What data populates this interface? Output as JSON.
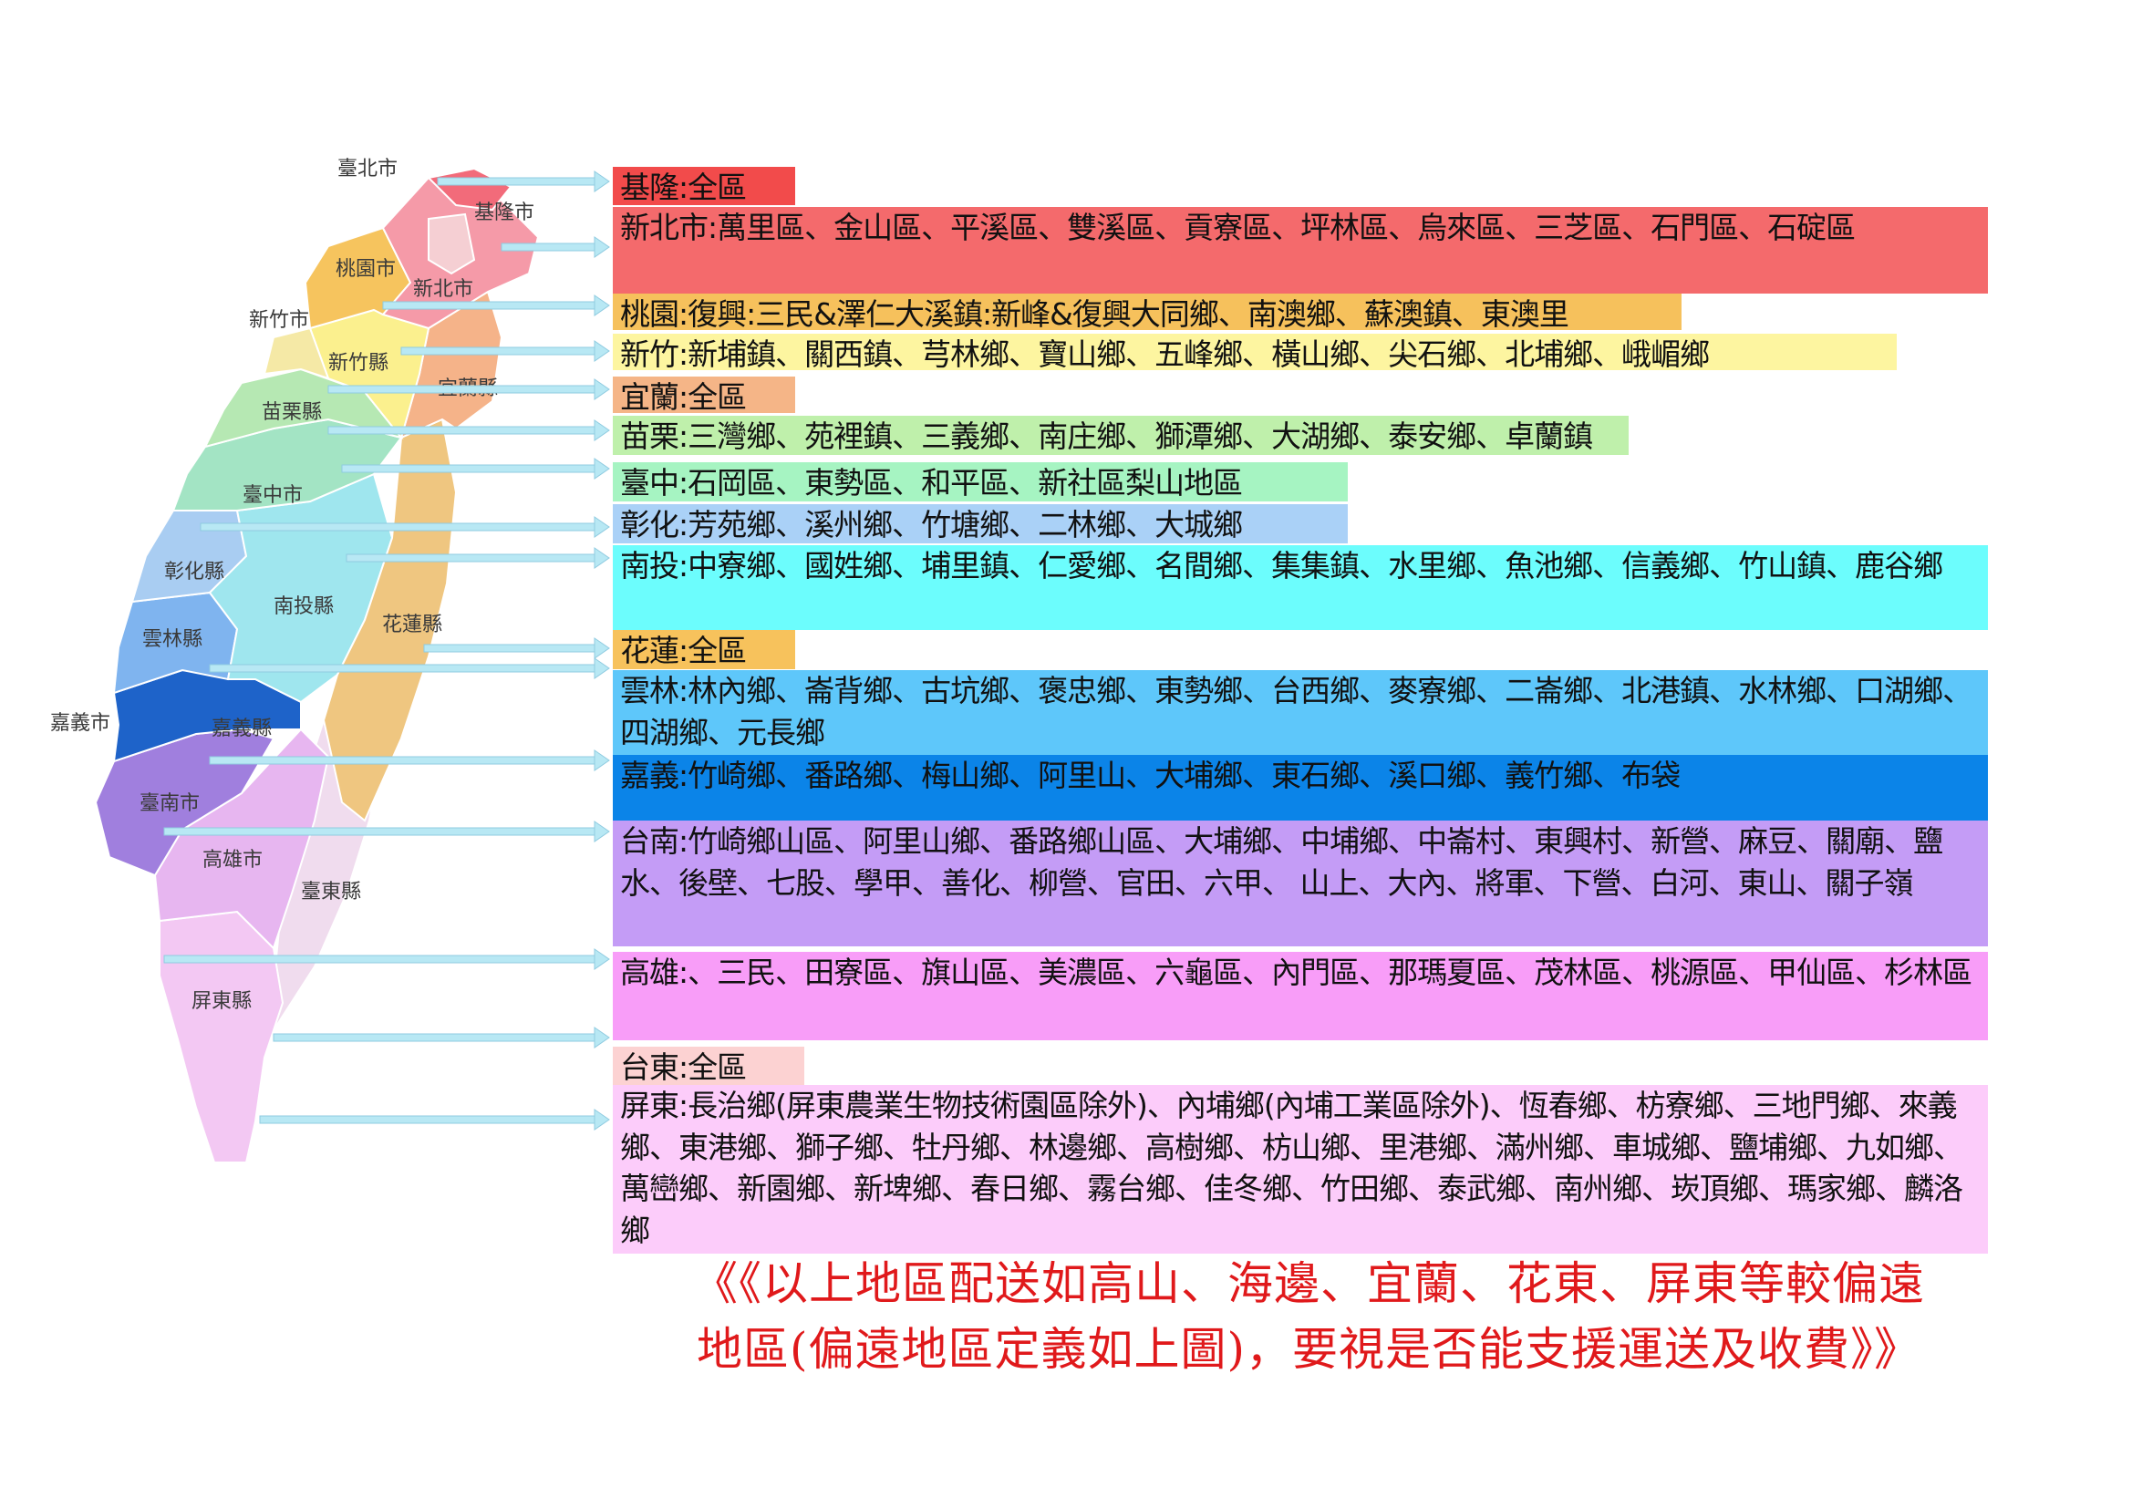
{
  "map": {
    "region_labels": {
      "taipei_city": "臺北市",
      "keelung_city": "基隆市",
      "taoyuan_city": "桃園市",
      "new_taipei_city": "新北市",
      "hsinchu_city": "新竹市",
      "hsinchu_county": "新竹縣",
      "yilan_county": "宜蘭縣",
      "miaoli_county": "苗栗縣",
      "taichung_city": "臺中市",
      "changhua_county": "彰化縣",
      "nantou_county": "南投縣",
      "hualien_county": "花蓮縣",
      "yunlin_county": "雲林縣",
      "chiayi_city": "嘉義市",
      "chiayi_county": "嘉義縣",
      "tainan_city": "臺南市",
      "kaohsiung_city": "高雄市",
      "taitung_county": "臺東縣",
      "pingtung_county": "屏東縣"
    },
    "region_colors": {
      "new_taipei": "#f59aa8",
      "keelung": "#f26b7a",
      "taipei": "#f5cfd3",
      "taoyuan": "#f6c45e",
      "hsinchu_city": "#f5e9a6",
      "hsinchu_county": "#fbf08e",
      "yilan": "#f5b389",
      "miaoli": "#b6e8b3",
      "taichung": "#a3e4c4",
      "changhua": "#a9cdf2",
      "nantou": "#9fe6ee",
      "hualien": "#efc680",
      "yunlin": "#7fb4ef",
      "chiayi": "#1e63c9",
      "tainan": "#a07fde",
      "kaohsiung": "#e7b6f0",
      "taitung": "#f0dcee",
      "pingtung": "#f3c8f3",
      "arrow": "#b8e8f4"
    }
  },
  "entries": [
    {
      "text": "基隆:全區",
      "color": "#f24b4b"
    },
    {
      "text": "新北市:萬里區、金山區、平溪區、雙溪區、貢寮區、坪林區、烏來區、三芝區、石門區、石碇區",
      "color": "#f46a6c"
    },
    {
      "text": "桃園:復興:三民&澤仁大溪鎮:新峰&復興大同鄉、南澳鄉、蘇澳鎮、東澳里",
      "color": "#f6c15c"
    },
    {
      "text": "新竹:新埔鎮、關西鎮、芎林鄉、寶山鄉、五峰鄉、橫山鄉、尖石鄉、北埔鄉、峨嵋鄉",
      "color": "#fdf5a0"
    },
    {
      "text": "宜蘭:全區",
      "color": "#f5b587"
    },
    {
      "text": "苗栗:三灣鄉、苑裡鎮、三義鄉、南庄鄉、獅潭鄉、大湖鄉、泰安鄉、卓蘭鎮",
      "color": "#bff0ab"
    },
    {
      "text": "臺中:石岡區、東勢區、和平區、新社區梨山地區",
      "color": "#a6f4c2"
    },
    {
      "text": "彰化:芳苑鄉、溪州鄉、竹塘鄉、二林鄉、大城鄉",
      "color": "#aad1f7"
    },
    {
      "text": "南投:中寮鄉、國姓鄉、埔里鎮、仁愛鄉、名間鄉、集集鎮、水里鄉、魚池鄉、信義鄉、竹山鎮、鹿谷鄉",
      "color": "#6cfdfd"
    },
    {
      "text": "花蓮:全區",
      "color": "#f7c25c"
    },
    {
      "text": "雲林:林內鄉、崙背鄉、古坑鄉、褒忠鄉、東勢鄉、台西鄉、麥寮鄉、二崙鄉、北港鎮、水林鄉、口湖鄉、四湖鄉、元長鄉",
      "color": "#5ec7fa"
    },
    {
      "text": "嘉義:竹崎鄉、番路鄉、梅山鄉、阿里山、大埔鄉、東石鄉、溪口鄉、義竹鄉、布袋",
      "color": "#0b84e8"
    },
    {
      "text": "台南:竹崎鄉山區、阿里山鄉、番路鄉山區、大埔鄉、中埔鄉、中崙村、東興村、新營、麻豆、關廟、鹽水、後壁、七股、學甲、善化、柳營、官田、六甲、 山上、大內、將軍、下營、白河、東山、關子嶺",
      "color": "#c49cf6"
    },
    {
      "text": "高雄:、三民、田寮區、旗山區、美濃區、六龜區、內門區、那瑪夏區、茂林區、桃源區、甲仙區、杉林區",
      "color": "#f89df8"
    },
    {
      "text": "台東:全區",
      "color": "#fcd2d2"
    },
    {
      "text": "屏東:長治鄉(屏東農業生物技術園區除外)、內埔鄉(內埔工業區除外)、恆春鄉、枋寮鄉、三地門鄉、來義鄉、東港鄉、獅子鄉、牡丹鄉、林邊鄉、高樹鄉、枋山鄉、里港鄉、滿州鄉、車城鄉、鹽埔鄉、九如鄉、萬巒鄉、新園鄉、新埤鄉、春日鄉、霧台鄉、佳冬鄉、竹田鄉、泰武鄉、南州鄉、崁頂鄉、瑪家鄉、麟洛鄉",
      "color": "#fcccfa"
    }
  ],
  "footer": {
    "line1": "《《以上地區配送如高山、海邊、宜蘭、花東、屏東等較偏遠",
    "line2": "地區(偏遠地區定義如上圖)，要視是否能支援運送及收費》》"
  }
}
